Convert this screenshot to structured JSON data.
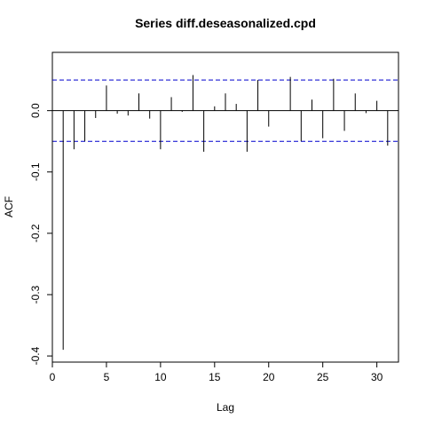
{
  "chart_data": {
    "type": "bar",
    "title": "Series  diff.deseasonalized.cpd",
    "xlabel": "Lag",
    "ylabel": "ACF",
    "xlim": [
      0,
      32
    ],
    "ylim": [
      -0.41,
      0.095
    ],
    "x_ticks": [
      0,
      5,
      10,
      15,
      20,
      25,
      30
    ],
    "y_ticks": [
      -0.4,
      -0.3,
      -0.2,
      -0.1,
      0.0
    ],
    "y_tick_labels": [
      "-0.4",
      "-0.3",
      "-0.2",
      "-0.1",
      "0.0"
    ],
    "confidence_band": 0.05,
    "grid": false,
    "x": [
      1,
      2,
      3,
      4,
      5,
      6,
      7,
      8,
      9,
      10,
      11,
      12,
      13,
      14,
      15,
      16,
      17,
      18,
      19,
      20,
      21,
      22,
      23,
      24,
      25,
      26,
      27,
      28,
      29,
      30,
      31
    ],
    "values": [
      -0.39,
      -0.063,
      -0.05,
      -0.012,
      0.041,
      -0.005,
      -0.008,
      0.028,
      -0.013,
      -0.063,
      0.022,
      -0.002,
      0.058,
      -0.067,
      0.007,
      0.028,
      0.011,
      -0.067,
      0.05,
      -0.026,
      0.0,
      0.055,
      -0.05,
      0.018,
      -0.045,
      0.052,
      -0.033,
      0.028,
      -0.004,
      0.016,
      -0.057
    ],
    "colors": {
      "bars": "#000000",
      "band": "#0000cd",
      "axis": "#000000"
    }
  }
}
